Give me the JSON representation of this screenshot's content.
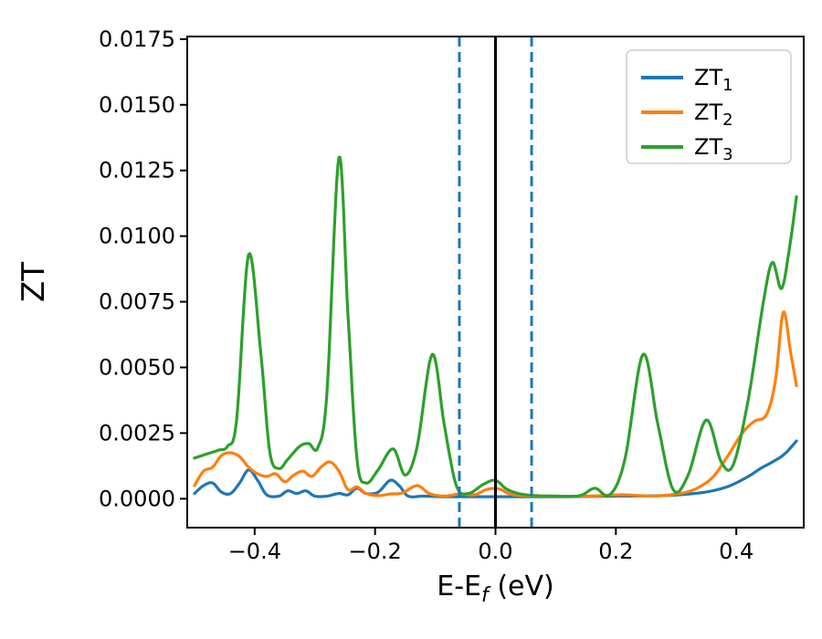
{
  "figure": {
    "background": "#ffffff",
    "spine_color": "#000000"
  },
  "chart_data": {
    "type": "line",
    "title": "",
    "xlabel": {
      "prefix": "E-E",
      "sub": "f",
      "suffix": " (eV)"
    },
    "ylabel": "ZT",
    "xlim": [
      -0.512,
      0.512
    ],
    "ylim": [
      -0.0011,
      0.0176
    ],
    "grid": false,
    "xticks": {
      "values": [
        -0.4,
        -0.2,
        0.0,
        0.2,
        0.4
      ],
      "labels": [
        "−0.4",
        "−0.2",
        "0.0",
        "0.2",
        "0.4"
      ]
    },
    "yticks": {
      "values": [
        0.0,
        0.0025,
        0.005,
        0.0075,
        0.01,
        0.0125,
        0.015,
        0.0175
      ],
      "labels": [
        "0.0000",
        "0.0025",
        "0.0050",
        "0.0075",
        "0.0100",
        "0.0125",
        "0.0150",
        "0.0175"
      ]
    },
    "legend": {
      "position": "upper right",
      "entries": [
        {
          "base": "ZT",
          "sub": "1",
          "color": "#1f77b4"
        },
        {
          "base": "ZT",
          "sub": "2",
          "color": "#ff7f0e"
        },
        {
          "base": "ZT",
          "sub": "3",
          "color": "#2ca02c"
        }
      ]
    },
    "vlines": [
      {
        "x": -0.06,
        "color": "#1f77b4",
        "style": "dashed",
        "width": 3
      },
      {
        "x": 0.0,
        "color": "#000000",
        "style": "solid",
        "width": 3
      },
      {
        "x": 0.06,
        "color": "#1f77b4",
        "style": "dashed",
        "width": 3
      }
    ],
    "series": [
      {
        "name": "ZT1",
        "color": "#1f77b4",
        "points": [
          [
            -0.5,
            0.0002
          ],
          [
            -0.485,
            0.0005
          ],
          [
            -0.47,
            0.0006
          ],
          [
            -0.455,
            0.00025
          ],
          [
            -0.44,
            0.0002
          ],
          [
            -0.425,
            0.0006
          ],
          [
            -0.41,
            0.0011
          ],
          [
            -0.395,
            0.0007
          ],
          [
            -0.38,
            0.00015
          ],
          [
            -0.36,
            0.0001
          ],
          [
            -0.345,
            0.0003
          ],
          [
            -0.33,
            0.0002
          ],
          [
            -0.315,
            0.0003
          ],
          [
            -0.3,
            0.0001
          ],
          [
            -0.28,
            0.0001
          ],
          [
            -0.26,
            0.0002
          ],
          [
            -0.245,
            0.00015
          ],
          [
            -0.23,
            0.0004
          ],
          [
            -0.215,
            0.0002
          ],
          [
            -0.195,
            0.00025
          ],
          [
            -0.175,
            0.0007
          ],
          [
            -0.16,
            0.0005
          ],
          [
            -0.145,
            0.0001
          ],
          [
            -0.12,
            0.0001
          ],
          [
            -0.09,
            8e-05
          ],
          [
            -0.05,
            8e-05
          ],
          [
            0.0,
            8e-05
          ],
          [
            0.05,
            8e-05
          ],
          [
            0.12,
            8e-05
          ],
          [
            0.2,
            0.0001
          ],
          [
            0.28,
            0.00012
          ],
          [
            0.33,
            0.0002
          ],
          [
            0.36,
            0.0003
          ],
          [
            0.39,
            0.0005
          ],
          [
            0.42,
            0.00085
          ],
          [
            0.44,
            0.00115
          ],
          [
            0.46,
            0.0014
          ],
          [
            0.48,
            0.0017
          ],
          [
            0.5,
            0.0022
          ]
        ]
      },
      {
        "name": "ZT2",
        "color": "#ff7f0e",
        "points": [
          [
            -0.5,
            0.0005
          ],
          [
            -0.485,
            0.00105
          ],
          [
            -0.47,
            0.0012
          ],
          [
            -0.455,
            0.00165
          ],
          [
            -0.44,
            0.00175
          ],
          [
            -0.425,
            0.0016
          ],
          [
            -0.41,
            0.0012
          ],
          [
            -0.395,
            0.00095
          ],
          [
            -0.38,
            0.00085
          ],
          [
            -0.365,
            0.00095
          ],
          [
            -0.35,
            0.00065
          ],
          [
            -0.335,
            0.0009
          ],
          [
            -0.32,
            0.00105
          ],
          [
            -0.305,
            0.00085
          ],
          [
            -0.29,
            0.0012
          ],
          [
            -0.275,
            0.0014
          ],
          [
            -0.26,
            0.00105
          ],
          [
            -0.245,
            0.00035
          ],
          [
            -0.23,
            0.00045
          ],
          [
            -0.215,
            0.0002
          ],
          [
            -0.195,
            0.00012
          ],
          [
            -0.175,
            0.00018
          ],
          [
            -0.155,
            0.00022
          ],
          [
            -0.13,
            0.0005
          ],
          [
            -0.11,
            0.0002
          ],
          [
            -0.085,
            0.0001
          ],
          [
            -0.06,
            0.00018
          ],
          [
            -0.035,
            0.00015
          ],
          [
            -0.015,
            0.00035
          ],
          [
            0.005,
            0.00038
          ],
          [
            0.03,
            0.00015
          ],
          [
            0.08,
            0.0001
          ],
          [
            0.15,
            0.0001
          ],
          [
            0.21,
            0.00015
          ],
          [
            0.26,
            0.0001
          ],
          [
            0.3,
            0.00018
          ],
          [
            0.33,
            0.00035
          ],
          [
            0.36,
            0.0008
          ],
          [
            0.385,
            0.0016
          ],
          [
            0.41,
            0.0025
          ],
          [
            0.43,
            0.00295
          ],
          [
            0.45,
            0.0032
          ],
          [
            0.465,
            0.0045
          ],
          [
            0.478,
            0.0071
          ],
          [
            0.49,
            0.0056
          ],
          [
            0.5,
            0.0043
          ]
        ]
      },
      {
        "name": "ZT3",
        "color": "#2ca02c",
        "points": [
          [
            -0.5,
            0.00155
          ],
          [
            -0.48,
            0.0017
          ],
          [
            -0.46,
            0.00185
          ],
          [
            -0.445,
            0.002
          ],
          [
            -0.43,
            0.003
          ],
          [
            -0.41,
            0.0093
          ],
          [
            -0.39,
            0.0056
          ],
          [
            -0.375,
            0.0018
          ],
          [
            -0.36,
            0.00115
          ],
          [
            -0.345,
            0.0015
          ],
          [
            -0.325,
            0.002
          ],
          [
            -0.31,
            0.0021
          ],
          [
            -0.295,
            0.00195
          ],
          [
            -0.28,
            0.004
          ],
          [
            -0.26,
            0.013
          ],
          [
            -0.245,
            0.007
          ],
          [
            -0.23,
            0.0015
          ],
          [
            -0.215,
            0.0006
          ],
          [
            -0.195,
            0.0011
          ],
          [
            -0.17,
            0.0019
          ],
          [
            -0.15,
            0.0009
          ],
          [
            -0.13,
            0.002
          ],
          [
            -0.105,
            0.0055
          ],
          [
            -0.085,
            0.0028
          ],
          [
            -0.065,
            0.0005
          ],
          [
            -0.045,
            0.0002
          ],
          [
            -0.02,
            0.00055
          ],
          [
            0.0,
            0.0007
          ],
          [
            0.02,
            0.00035
          ],
          [
            0.05,
            0.00015
          ],
          [
            0.1,
            0.0001
          ],
          [
            0.14,
            0.00012
          ],
          [
            0.165,
            0.0004
          ],
          [
            0.19,
            0.00015
          ],
          [
            0.215,
            0.0015
          ],
          [
            0.245,
            0.0055
          ],
          [
            0.27,
            0.0028
          ],
          [
            0.295,
            0.00035
          ],
          [
            0.32,
            0.0009
          ],
          [
            0.35,
            0.003
          ],
          [
            0.375,
            0.0014
          ],
          [
            0.395,
            0.0013
          ],
          [
            0.42,
            0.0038
          ],
          [
            0.445,
            0.0075
          ],
          [
            0.46,
            0.009
          ],
          [
            0.475,
            0.008
          ],
          [
            0.488,
            0.0095
          ],
          [
            0.5,
            0.0115
          ]
        ]
      }
    ]
  }
}
